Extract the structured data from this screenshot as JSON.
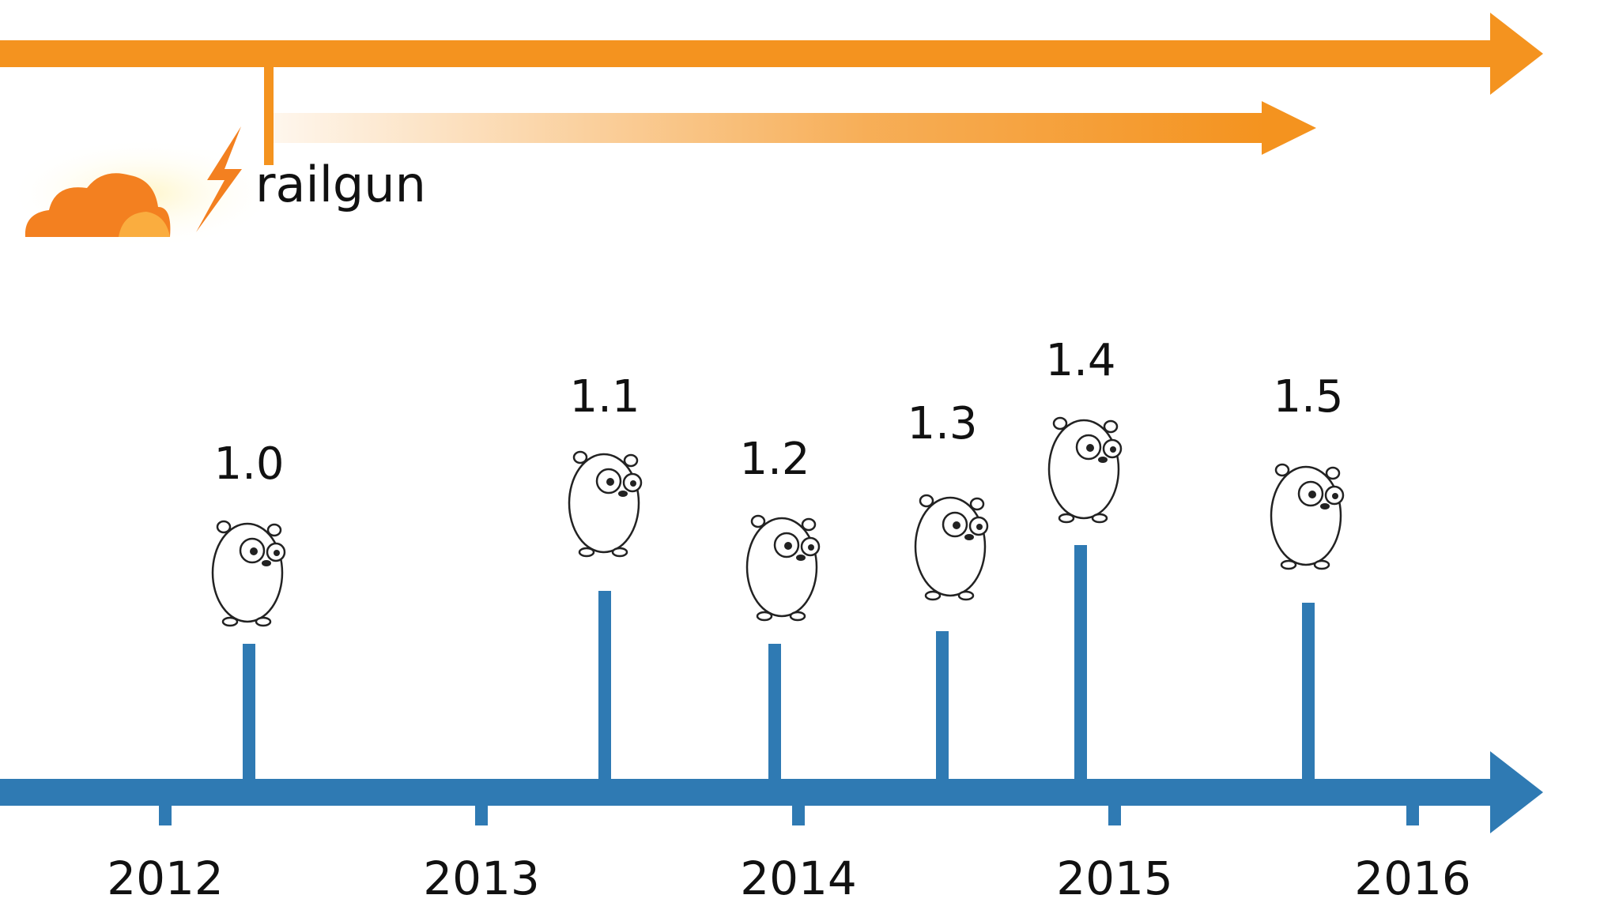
{
  "railgun": {
    "label": "railgun"
  },
  "years": [
    "2012",
    "2013",
    "2014",
    "2015",
    "2016"
  ],
  "releases": [
    "1.0",
    "1.1",
    "1.2",
    "1.3",
    "1.4",
    "1.5"
  ]
}
